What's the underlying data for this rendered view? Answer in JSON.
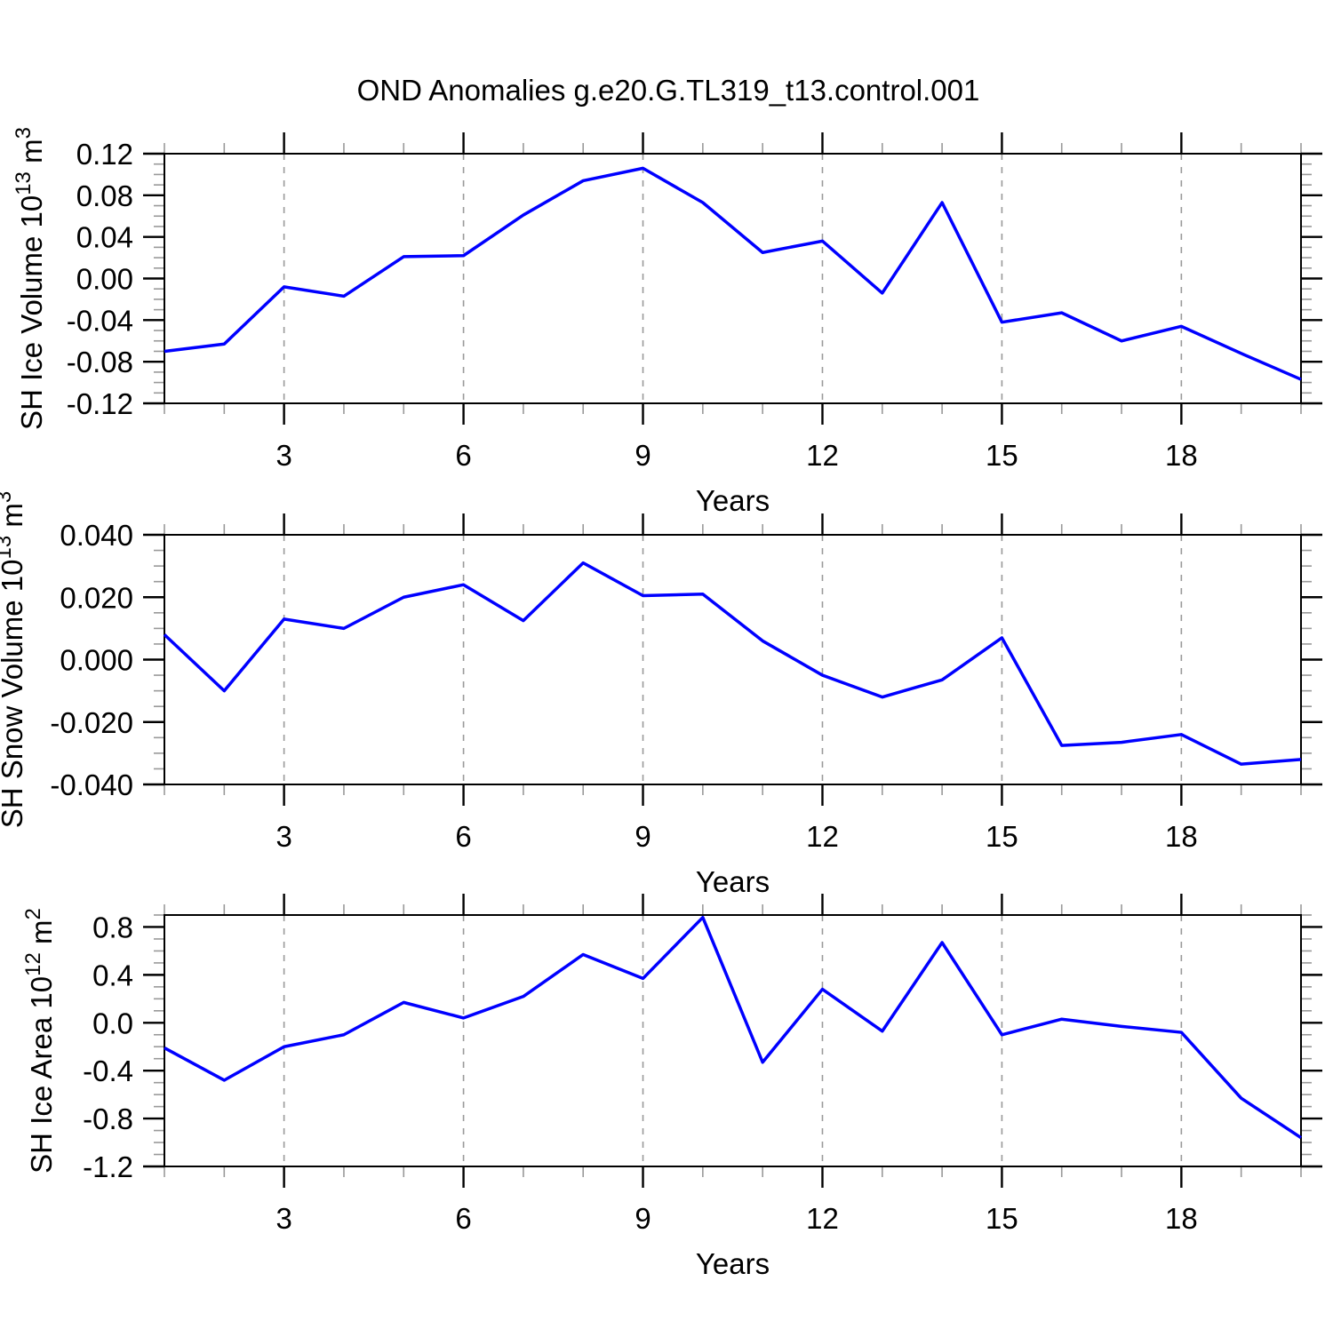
{
  "title": "OND Anomalies g.e20.G.TL319_t13.control.001",
  "colors": {
    "line": "#0000ff",
    "grid": "#999999",
    "axis": "#000000",
    "minor_tick": "#999999",
    "text": "#000000",
    "background": "#ffffff"
  },
  "chart_data": [
    {
      "type": "line",
      "name": "sh-ice-volume",
      "ylabel": "SH Ice Volume 10^13 m^3",
      "ylabel_parts": [
        {
          "text": "SH Ice Volume 10"
        },
        {
          "text": "13",
          "sup": true
        },
        {
          "text": " m"
        },
        {
          "text": "3",
          "sup": true
        }
      ],
      "xlabel": "Years",
      "x": [
        1,
        2,
        3,
        4,
        5,
        6,
        7,
        8,
        9,
        10,
        11,
        12,
        13,
        14,
        15,
        16,
        17,
        18,
        19,
        20
      ],
      "values": [
        -0.07,
        -0.063,
        -0.008,
        -0.017,
        0.021,
        0.022,
        0.061,
        0.094,
        0.106,
        0.073,
        0.025,
        0.036,
        -0.014,
        0.073,
        -0.042,
        -0.033,
        -0.06,
        -0.046,
        -0.072,
        -0.097
      ],
      "xlim": [
        1,
        20
      ],
      "ylim": [
        -0.12,
        0.12
      ],
      "yticks": [
        0.12,
        0.08,
        0.04,
        0.0,
        -0.04,
        -0.08,
        -0.12
      ],
      "ytick_labels": [
        "0.12",
        "0.08",
        "0.04",
        "0.00",
        "-0.04",
        "-0.08",
        "-0.12"
      ],
      "yminor_step": 0.01,
      "xticks": [
        3,
        6,
        9,
        12,
        15,
        18
      ],
      "xtick_labels": [
        "3",
        "6",
        "9",
        "12",
        "15",
        "18"
      ],
      "xminor_step": 1,
      "grid": "vertical-dashed",
      "legend": "none"
    },
    {
      "type": "line",
      "name": "sh-snow-volume",
      "ylabel": "SH Snow Volume 10^13 m^3",
      "ylabel_parts": [
        {
          "text": "SH Snow Volume 10"
        },
        {
          "text": "13",
          "sup": true
        },
        {
          "text": " m"
        },
        {
          "text": "3",
          "sup": true
        }
      ],
      "xlabel": "Years",
      "x": [
        1,
        2,
        3,
        4,
        5,
        6,
        7,
        8,
        9,
        10,
        11,
        12,
        13,
        14,
        15,
        16,
        17,
        18,
        19,
        20
      ],
      "values": [
        0.008,
        -0.01,
        0.013,
        0.01,
        0.02,
        0.024,
        0.0125,
        0.031,
        0.0205,
        0.021,
        0.006,
        -0.005,
        -0.012,
        -0.0065,
        0.007,
        -0.0275,
        -0.0265,
        -0.024,
        -0.0335,
        -0.032
      ],
      "xlim": [
        1,
        20
      ],
      "ylim": [
        -0.04,
        0.04
      ],
      "yticks": [
        0.04,
        0.02,
        0.0,
        -0.02,
        -0.04
      ],
      "ytick_labels": [
        "0.040",
        "0.020",
        "0.000",
        "-0.020",
        "-0.040"
      ],
      "yminor_step": 0.005,
      "xticks": [
        3,
        6,
        9,
        12,
        15,
        18
      ],
      "xtick_labels": [
        "3",
        "6",
        "9",
        "12",
        "15",
        "18"
      ],
      "xminor_step": 1,
      "grid": "vertical-dashed",
      "legend": "none"
    },
    {
      "type": "line",
      "name": "sh-ice-area",
      "ylabel": "SH Ice Area 10^12 m^2",
      "ylabel_parts": [
        {
          "text": "SH Ice Area 10"
        },
        {
          "text": "12",
          "sup": true
        },
        {
          "text": " m"
        },
        {
          "text": "2",
          "sup": true
        }
      ],
      "xlabel": "Years",
      "x": [
        1,
        2,
        3,
        4,
        5,
        6,
        7,
        8,
        9,
        10,
        11,
        12,
        13,
        14,
        15,
        16,
        17,
        18,
        19,
        20
      ],
      "values": [
        -0.21,
        -0.48,
        -0.2,
        -0.1,
        0.17,
        0.04,
        0.22,
        0.57,
        0.37,
        0.88,
        -0.33,
        0.28,
        -0.07,
        0.67,
        -0.1,
        0.03,
        -0.03,
        -0.08,
        -0.63,
        -0.96
      ],
      "xlim": [
        1,
        20
      ],
      "ylim": [
        -1.2,
        0.9
      ],
      "yticks": [
        0.8,
        0.4,
        0.0,
        -0.4,
        -0.8,
        -1.2
      ],
      "ytick_labels": [
        "0.8",
        "0.4",
        "0.0",
        "-0.4",
        "-0.8",
        "-1.2"
      ],
      "yminor_step": 0.1,
      "xticks": [
        3,
        6,
        9,
        12,
        15,
        18
      ],
      "xtick_labels": [
        "3",
        "6",
        "9",
        "12",
        "15",
        "18"
      ],
      "xminor_step": 1,
      "grid": "vertical-dashed",
      "legend": "none"
    }
  ]
}
